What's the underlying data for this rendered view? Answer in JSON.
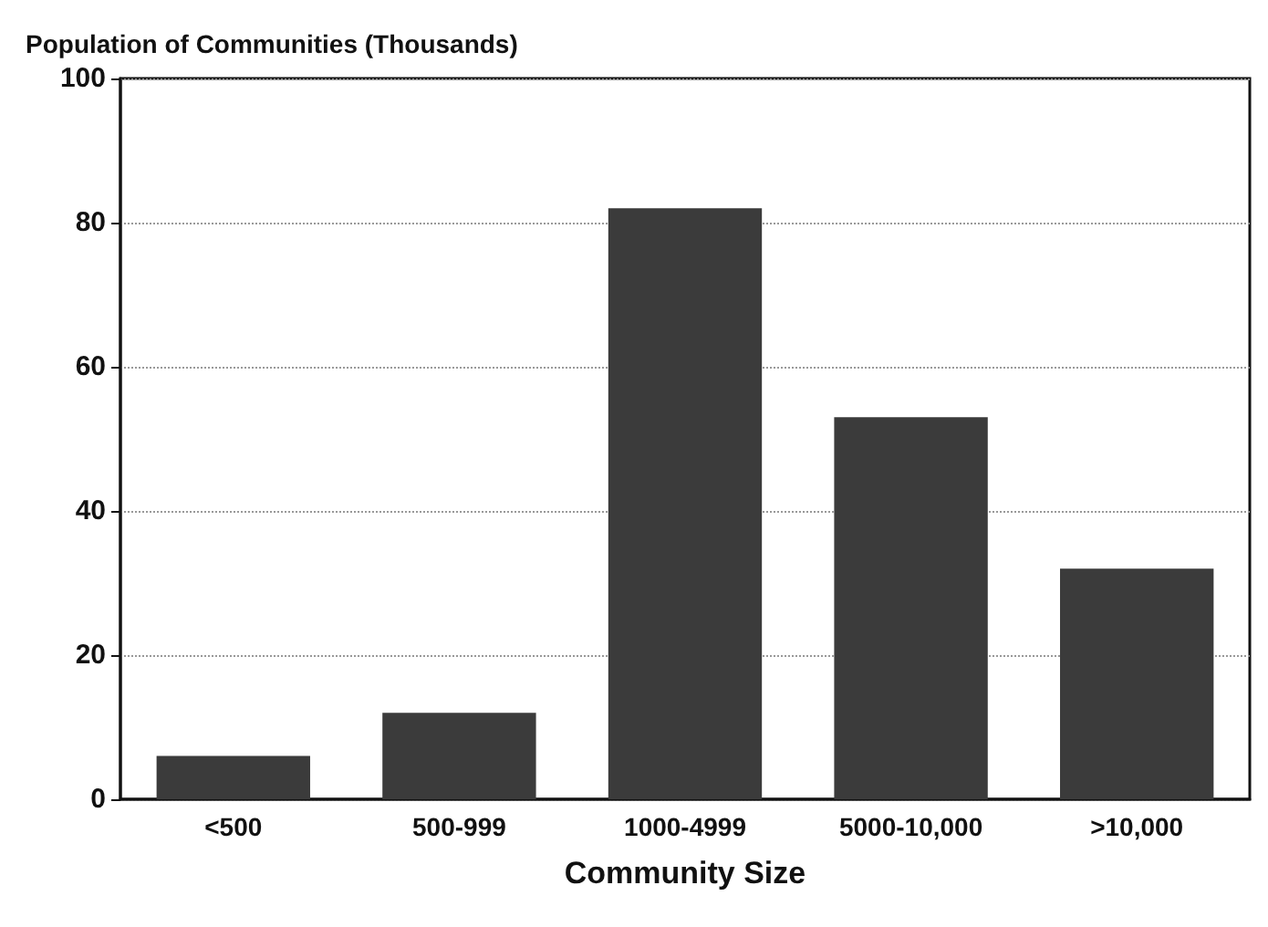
{
  "chart_data": {
    "type": "bar",
    "ylabel": "Population of Communities (Thousands)",
    "xlabel": "Community Size",
    "categories": [
      "<500",
      "500-999",
      "1000-4999",
      "5000-10,000",
      ">10,000"
    ],
    "values": [
      6,
      12,
      82,
      53,
      32
    ],
    "color": "#3b3b3b",
    "ylim": [
      0,
      100
    ],
    "yticks": [
      0,
      20,
      40,
      60,
      80,
      100
    ],
    "grid": "y",
    "line_style": "dotted"
  }
}
